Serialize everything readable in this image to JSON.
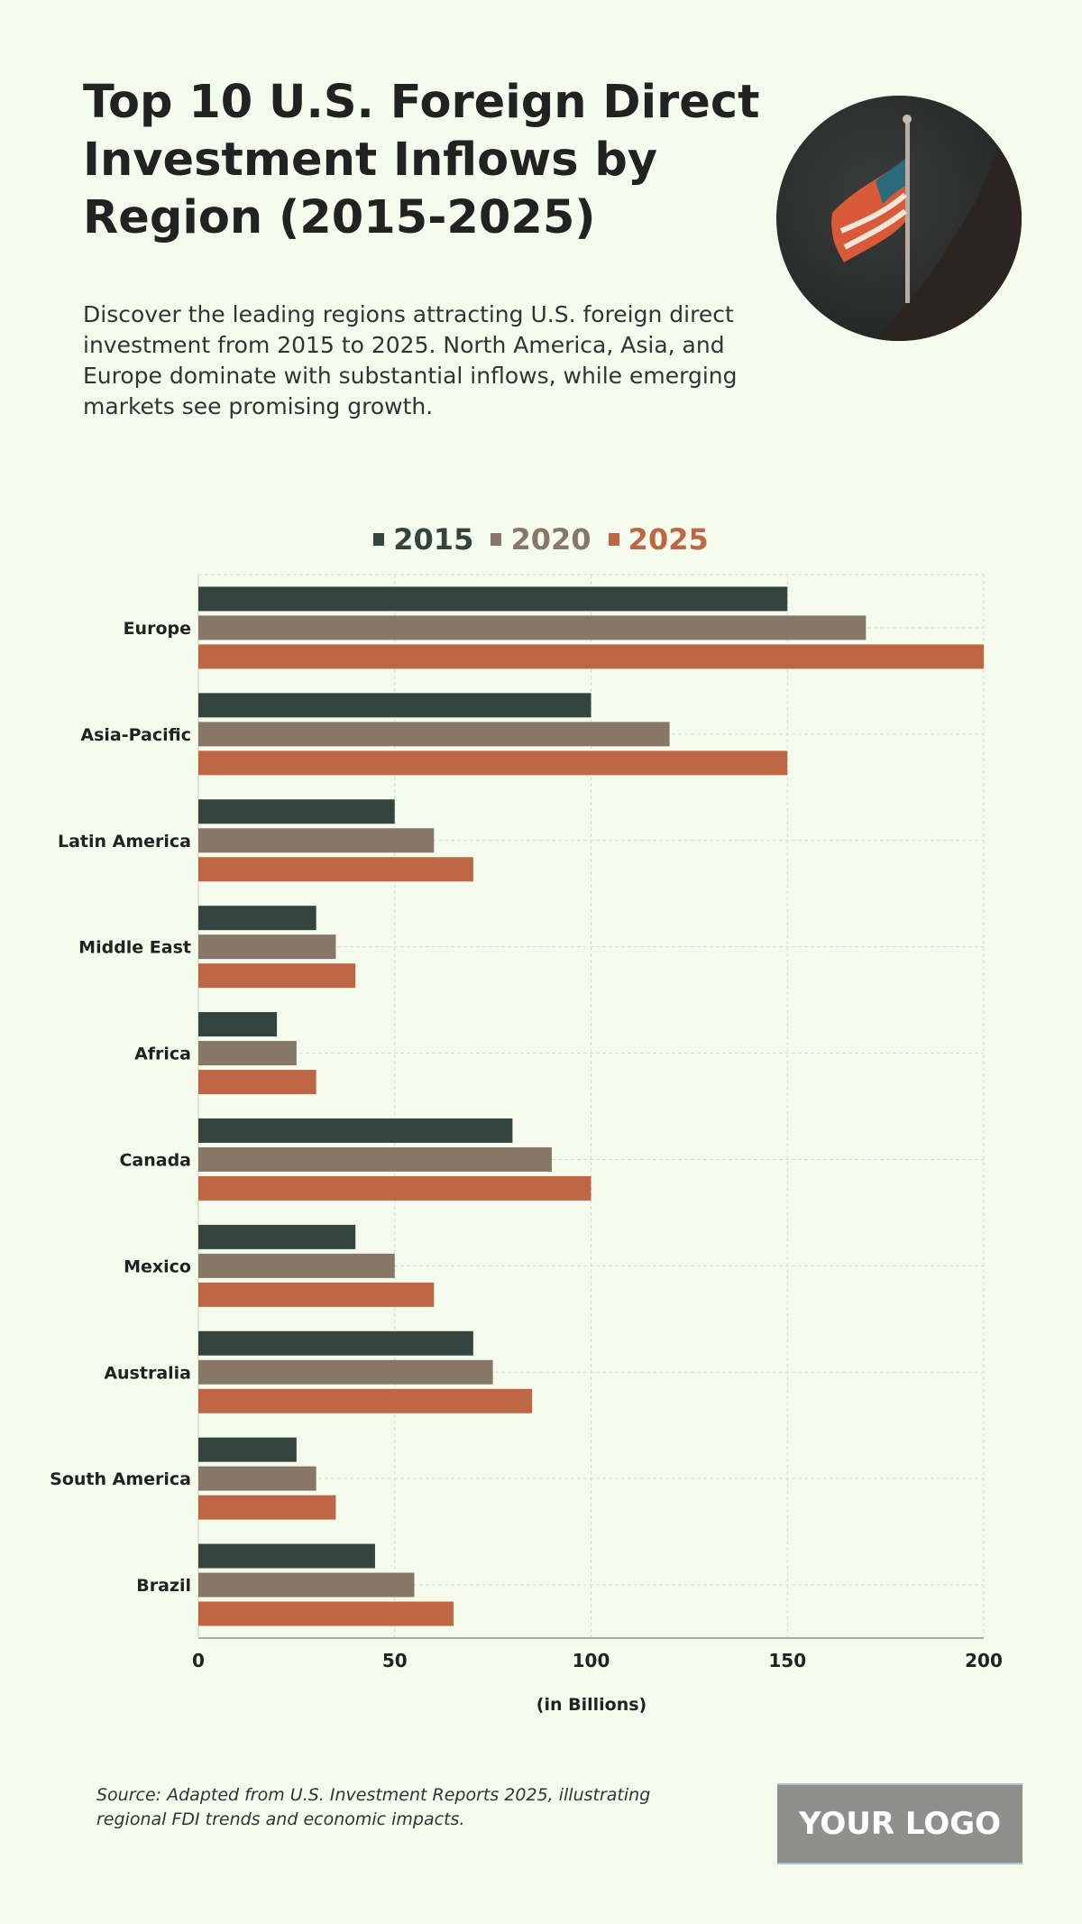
{
  "header": {
    "title": "Top 10 U.S. Foreign Direct Investment Inflows by Region (2015-2025)",
    "subtitle": "Discover the leading regions attracting U.S. foreign direct investment from 2015 to 2025. North America, Asia, and Europe dominate with substantial inflows, while emerging markets see promising growth.",
    "image_icon": "half-mast-us-flag-photo"
  },
  "chart_data": {
    "type": "bar",
    "orientation": "horizontal",
    "categories": [
      "Europe",
      "Asia-Pacific",
      "Latin America",
      "Middle East",
      "Africa",
      "Canada",
      "Mexico",
      "Australia",
      "South America",
      "Brazil"
    ],
    "series": [
      {
        "name": "2015",
        "color": "#34443e",
        "values": [
          150,
          100,
          50,
          30,
          20,
          80,
          40,
          70,
          25,
          45
        ]
      },
      {
        "name": "2020",
        "color": "#867766",
        "values": [
          170,
          120,
          60,
          35,
          25,
          90,
          50,
          75,
          30,
          55
        ]
      },
      {
        "name": "2025",
        "color": "#bf6744",
        "values": [
          200,
          150,
          70,
          40,
          30,
          100,
          60,
          85,
          35,
          65
        ]
      }
    ],
    "xlabel": "(in Billions)",
    "ylabel": "",
    "xlim": [
      0,
      200
    ],
    "xticks": [
      "0",
      "50",
      "100",
      "150",
      "200"
    ],
    "grid": true,
    "legend_position": "top"
  },
  "footer": {
    "source": "Source: Adapted from U.S. Investment Reports 2025, illustrating regional FDI trends and economic impacts.",
    "logo": "YOUR LOGO"
  }
}
